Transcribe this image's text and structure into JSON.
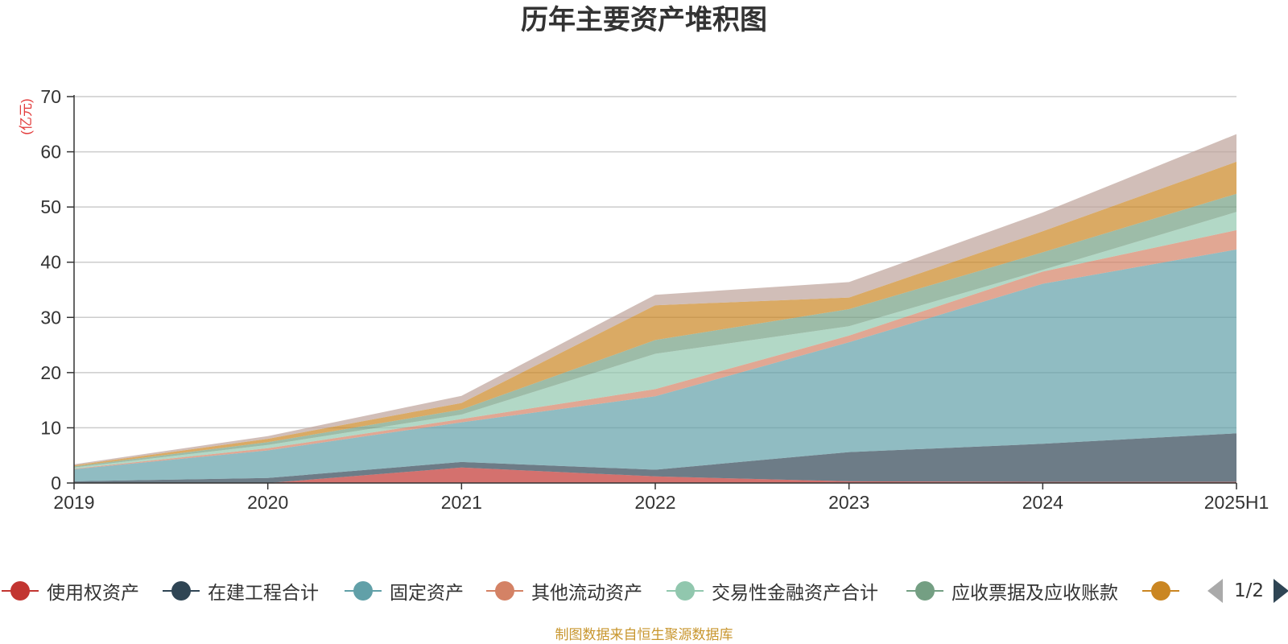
{
  "chart_data": {
    "type": "area",
    "stacked": true,
    "title": "历年主要资产堆积图",
    "unit_label": "(亿元)",
    "categories": [
      "2019",
      "2020",
      "2021",
      "2022",
      "2023",
      "2024",
      "2025H1"
    ],
    "ylim": [
      0,
      70
    ],
    "yticks": [
      0,
      10,
      20,
      30,
      40,
      50,
      60,
      70
    ],
    "grid": true,
    "legend_position": "bottom",
    "series": [
      {
        "name": "使用权资产",
        "color": "#c23531",
        "values": [
          0,
          0,
          2.8,
          1.2,
          0.3,
          0.2,
          0.2
        ]
      },
      {
        "name": "在建工程合计",
        "color": "#2f4554",
        "values": [
          0.3,
          0.9,
          1.0,
          1.2,
          5.3,
          6.9,
          8.8
        ]
      },
      {
        "name": "固定资产",
        "color": "#61a0a8",
        "values": [
          2.2,
          5.0,
          7.2,
          13.3,
          19.9,
          29.0,
          33.3
        ]
      },
      {
        "name": "其他流动资产",
        "color": "#d48265",
        "values": [
          0.1,
          0.4,
          0.6,
          1.3,
          1.2,
          2.2,
          3.5
        ]
      },
      {
        "name": "交易性金融资产合计",
        "color": "#91c7ae",
        "values": [
          0.2,
          0.6,
          0.8,
          6.4,
          1.7,
          0.3,
          3.3
        ]
      },
      {
        "name": "应收票据及应收账款",
        "color": "#749f83",
        "values": [
          0.2,
          0.5,
          0.9,
          2.5,
          3.1,
          3.2,
          3.3
        ]
      },
      {
        "name": "",
        "color": "#ca8622",
        "values": [
          0.2,
          0.6,
          1.2,
          6.3,
          2.1,
          3.8,
          5.8
        ]
      },
      {
        "name": "",
        "color": "#bda29a",
        "values": [
          0.2,
          0.5,
          1.3,
          1.9,
          2.8,
          3.4,
          5.0
        ]
      }
    ]
  },
  "legend": {
    "pager": "1/2"
  },
  "footer": {
    "source": "制图数据来自恒生聚源数据库"
  }
}
